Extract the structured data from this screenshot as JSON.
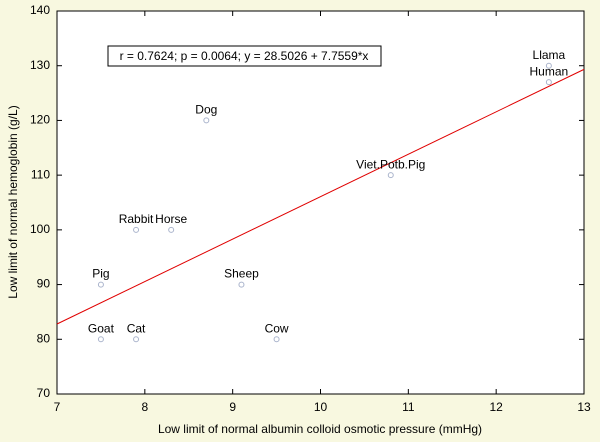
{
  "chart_data": {
    "type": "scatter",
    "x": [
      7.5,
      7.9,
      7.5,
      7.9,
      8.3,
      8.7,
      9.1,
      9.5,
      10.8,
      12.6,
      12.6
    ],
    "values": [
      80,
      80,
      90,
      100,
      100,
      120,
      90,
      80,
      110,
      130,
      127
    ],
    "labels": [
      "Goat",
      "Cat",
      "Pig",
      "Rabbit",
      "Horse",
      "Dog",
      "Sheep",
      "Cow",
      "Viet.Potb.Pig",
      "Llama",
      "Human"
    ],
    "color": "#aab4cc",
    "fit": {
      "intercept": 28.5026,
      "slope": 7.7559,
      "color": "#e00000"
    },
    "annotation": "r = 0.7624; p = 0.0064;  y = 28.5026 + 7.7559*x",
    "xlabel": "Low limit of normal albumin colloid osmotic pressure (mmHg)",
    "ylabel": "Low limit of normal hemoglobin (g/L)",
    "xlim": [
      7,
      13
    ],
    "ylim": [
      70,
      140
    ],
    "xticks": [
      7,
      8,
      9,
      10,
      11,
      12,
      13
    ],
    "yticks": [
      70,
      80,
      90,
      100,
      110,
      120,
      130,
      140
    ]
  }
}
